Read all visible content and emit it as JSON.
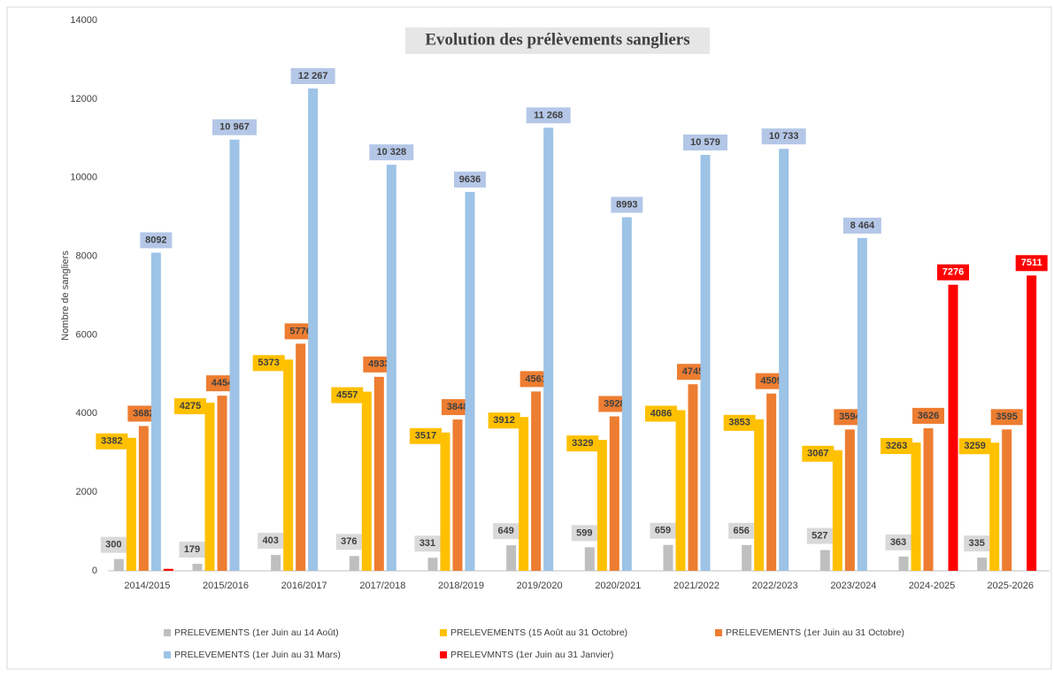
{
  "chart_data": {
    "type": "bar",
    "title": "Evolution des prélèvements sangliers",
    "y_label": "Nombre de sangliers",
    "categories": [
      "2014/2015",
      "2015/2016",
      "2016/2017",
      "2017/2018",
      "2018/2019",
      "2019/2020",
      "2020/2021",
      "2021/2022",
      "2022/2023",
      "2023/2024",
      "2024-2025",
      "2025-2026"
    ],
    "ylim": [
      0,
      14000
    ],
    "yticks": [
      0,
      2000,
      4000,
      6000,
      8000,
      10000,
      12000,
      14000
    ],
    "series": [
      {
        "name": "PRELEVEMENTS (1er Juin au 14 Août)",
        "color": "#bfbfbf",
        "label_bg": "#d9d9d9",
        "values": [
          300,
          179,
          403,
          376,
          331,
          649,
          599,
          659,
          656,
          527,
          363,
          335
        ]
      },
      {
        "name": "PRELEVEMENTS (15 Août au 31 Octobre)",
        "color": "#ffc000",
        "label_bg": "#ffc000",
        "values": [
          3382,
          4275,
          5373,
          4557,
          3517,
          3912,
          3329,
          4086,
          3853,
          3067,
          3263,
          3259
        ]
      },
      {
        "name": "PRELEVEMENTS  (1er Juin au 31 Octobre)",
        "color": "#ed7d31",
        "label_bg": "#ed7d31",
        "values": [
          3682,
          4454,
          5776,
          4933,
          3848,
          4561,
          3928,
          4745,
          4509,
          3594,
          3626,
          3595
        ]
      },
      {
        "name": "PRELEVEMENTS  (1er Juin au 31 Mars)",
        "color": "#9dc3e6",
        "label_bg": "#b4c7e7",
        "values": [
          8092,
          10967,
          12267,
          10328,
          9636,
          11268,
          8993,
          10579,
          10733,
          8464,
          null,
          null
        ],
        "value_labels": [
          "8092",
          "10 967",
          "12 267",
          "10 328",
          "9636",
          "11 268",
          "8993",
          "10 579",
          "10 733",
          "8 464",
          null,
          null
        ]
      },
      {
        "name": "PRELEVMNTS (1er Juin au 31 Janvier)",
        "color": "#ff0000",
        "label_bg": "#ff0000",
        "values": [
          50,
          null,
          null,
          null,
          null,
          null,
          null,
          null,
          null,
          null,
          7276,
          7511
        ],
        "value_labels": [
          null,
          null,
          null,
          null,
          null,
          null,
          null,
          null,
          null,
          null,
          "7276",
          "7511"
        ]
      }
    ]
  }
}
